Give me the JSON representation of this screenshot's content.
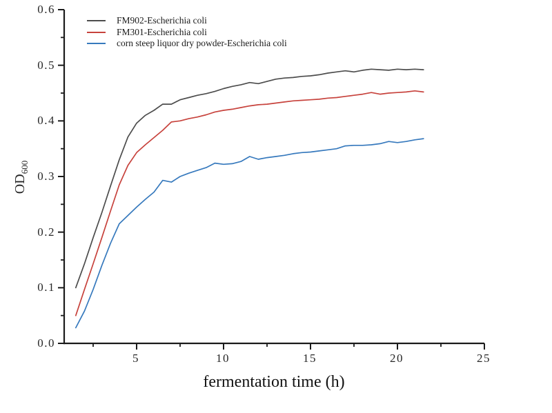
{
  "figure": {
    "background": "#ffffff",
    "axis_color": "#1a1a1a"
  },
  "chart_data": {
    "type": "line",
    "title": "",
    "xlabel": "fermentation time (h)",
    "ylabel": "OD",
    "ylabel_subscript": "600",
    "grid": false,
    "legend_position": "top-left-inside",
    "xlim": [
      0.833,
      25
    ],
    "ylim": [
      0,
      0.6
    ],
    "x_major_ticks": [
      5,
      10,
      15,
      20,
      25
    ],
    "x_tick_labels": [
      "5",
      "10",
      "15",
      "20",
      "25"
    ],
    "x_minor_ticks": [
      2.5,
      7.5,
      12.5,
      17.5,
      22.5
    ],
    "y_major_ticks": [
      0,
      0.1,
      0.2,
      0.3,
      0.4,
      0.5,
      0.6
    ],
    "y_tick_labels": [
      "0.0",
      "0.1",
      "0.2",
      "0.3",
      "0.4",
      "0.5",
      "0.6"
    ],
    "y_minor_ticks": [
      0.05,
      0.15,
      0.25,
      0.35,
      0.45,
      0.55
    ],
    "x": [
      1.5,
      2,
      2.5,
      3,
      3.5,
      4,
      4.5,
      5,
      5.5,
      6,
      6.5,
      7,
      7.5,
      8,
      8.5,
      9,
      9.5,
      10,
      10.5,
      11,
      11.5,
      12,
      12.5,
      13,
      13.5,
      14,
      14.5,
      15,
      15.5,
      16,
      16.5,
      17,
      17.5,
      18,
      18.5,
      19,
      19.5,
      20,
      20.5,
      21,
      21.5
    ],
    "series": [
      {
        "name": "FM902-Escherichia coli",
        "color": "#4c4c4c",
        "values": [
          0.1,
          0.143,
          0.19,
          0.235,
          0.283,
          0.33,
          0.371,
          0.396,
          0.41,
          0.419,
          0.43,
          0.43,
          0.438,
          0.442,
          0.446,
          0.449,
          0.453,
          0.458,
          0.462,
          0.465,
          0.469,
          0.467,
          0.471,
          0.475,
          0.477,
          0.478,
          0.48,
          0.481,
          0.483,
          0.486,
          0.488,
          0.49,
          0.488,
          0.491,
          0.493,
          0.492,
          0.491,
          0.493,
          0.492,
          0.493,
          0.492
        ]
      },
      {
        "name": "FM301-Escherichia coli",
        "color": "#c7423c",
        "values": [
          0.05,
          0.097,
          0.143,
          0.19,
          0.238,
          0.285,
          0.32,
          0.343,
          0.357,
          0.37,
          0.383,
          0.398,
          0.4,
          0.404,
          0.407,
          0.411,
          0.416,
          0.419,
          0.421,
          0.424,
          0.427,
          0.429,
          0.43,
          0.432,
          0.434,
          0.436,
          0.437,
          0.438,
          0.439,
          0.441,
          0.442,
          0.444,
          0.446,
          0.448,
          0.451,
          0.448,
          0.45,
          0.451,
          0.452,
          0.454,
          0.452
        ]
      },
      {
        "name": "corn steep liquor dry powder-Escherichia coli",
        "color": "#3679bd",
        "values": [
          0.028,
          0.058,
          0.097,
          0.14,
          0.18,
          0.215,
          0.23,
          0.245,
          0.259,
          0.272,
          0.293,
          0.29,
          0.3,
          0.306,
          0.311,
          0.316,
          0.324,
          0.322,
          0.323,
          0.327,
          0.336,
          0.331,
          0.334,
          0.336,
          0.338,
          0.341,
          0.343,
          0.344,
          0.346,
          0.348,
          0.35,
          0.355,
          0.356,
          0.356,
          0.357,
          0.359,
          0.363,
          0.361,
          0.363,
          0.366,
          0.368
        ]
      }
    ]
  }
}
